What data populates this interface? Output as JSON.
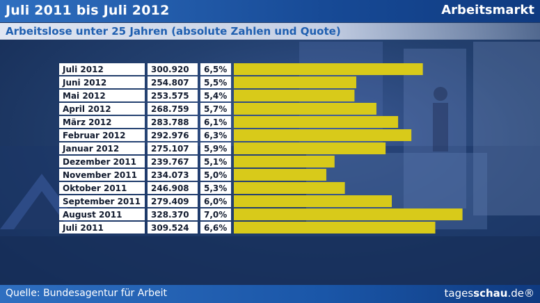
{
  "header": {
    "title": "Juli 2011 bis Juli 2012",
    "topic": "Arbeitsmarkt",
    "subtitle": "Arbeitslose unter 25 Jahren (absolute Zahlen und Quote)"
  },
  "footer": {
    "source": "Quelle: Bundesagentur für Arbeit",
    "brand_regular": "tages",
    "brand_bold": "schau",
    "brand_suffix": ".de®"
  },
  "colors": {
    "bar": "#d8ca1a",
    "header_bar": "#1a56a8",
    "subtitle_text": "#1f5fb0"
  },
  "chart_data": {
    "type": "bar",
    "orientation": "horizontal",
    "categories": [
      "Juli 2012",
      "Juni 2012",
      "Mai 2012",
      "April 2012",
      "März 2012",
      "Februar 2012",
      "Januar 2012",
      "Dezember 2011",
      "November 2011",
      "Oktober 2011",
      "September 2011",
      "August 2011",
      "Juli 2011"
    ],
    "values": [
      300920,
      254807,
      253575,
      268759,
      283788,
      292976,
      275107,
      239767,
      234073,
      246908,
      279409,
      328370,
      309524
    ],
    "value_labels": [
      "300.920",
      "254.807",
      "253.575",
      "268.759",
      "283.788",
      "292.976",
      "275.107",
      "239.767",
      "234.073",
      "246.908",
      "279.409",
      "328.370",
      "309.524"
    ],
    "rates": [
      "6,5%",
      "5,5%",
      "5,4%",
      "5,7%",
      "6,1%",
      "6,3%",
      "5,9%",
      "5,1%",
      "5,0%",
      "5,3%",
      "6,0%",
      "7,0%",
      "6,6%"
    ],
    "xlim": [
      170000,
      330000
    ]
  }
}
